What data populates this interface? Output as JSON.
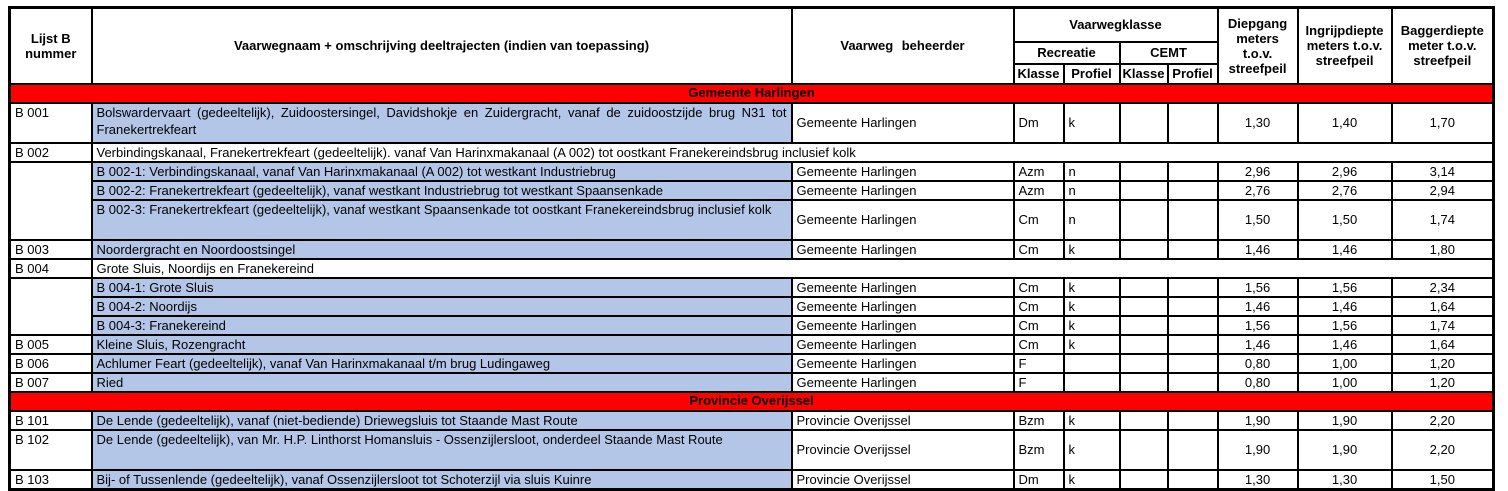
{
  "colors": {
    "highlight_blue": "#b4c6e7",
    "section_red": "#ff0000",
    "border_black": "#000000"
  },
  "table": {
    "header": {
      "lijst_b": "Lijst B nummer",
      "vaarwegnaam": "Vaarwegnaam + omschrijving deeltrajecten (indien van toepassing)",
      "beheerder": "Vaarweg beheerder",
      "vaarwegklasse": "Vaarwegklasse",
      "recreatie": "Recreatie",
      "cemt": "CEMT",
      "klasse": "Klasse",
      "profiel": "Profiel",
      "diepgang": "Diepgang meters t.o.v. streefpeil",
      "ingrijpdiepte": "Ingrijpdiepte meters t.o.v. streefpeil",
      "baggerdiepte": "Baggerdiepte meter t.o.v. streefpeil"
    },
    "rows": [
      {
        "type": "section",
        "label": "Gemeente Harlingen"
      },
      {
        "type": "main",
        "tall": true,
        "num": "B 001",
        "name": "Bolswardervaart (gedeeltelijk), Zuidoostersingel, Davidshokje en Zuidergracht, vanaf de zuidoostzijde brug N31 tot Franekertrekfeart",
        "beheerder": "Gemeente Harlingen",
        "rec_klasse": "Dm",
        "rec_profiel": "k",
        "cemt_klasse": "",
        "cemt_profiel": "",
        "diepgang": "1,30",
        "ingrijpdiepte": "1,40",
        "baggerdiepte": "1,70"
      },
      {
        "type": "span",
        "num": "B 002",
        "name": "Verbindingskanaal, Franekertrekfeart (gedeeltelijk). vanaf Van Harinxmakanaal (A 002) tot oostkant Franekereindsbrug inclusief kolk"
      },
      {
        "type": "sub",
        "num_rowspan": 3,
        "num": "",
        "name": "B 002-1: Verbindingskanaal, vanaf Van Harinxmakanaal (A 002) tot westkant Industriebrug",
        "beheerder": "Gemeente Harlingen",
        "rec_klasse": "Azm",
        "rec_profiel": "n",
        "cemt_klasse": "",
        "cemt_profiel": "",
        "diepgang": "2,96",
        "ingrijpdiepte": "2,96",
        "baggerdiepte": "3,14"
      },
      {
        "type": "sub",
        "name": "B 002-2: Franekertrekfeart (gedeeltelijk), vanaf westkant Industriebrug tot westkant Spaansenkade",
        "beheerder": "Gemeente Harlingen",
        "rec_klasse": "Azm",
        "rec_profiel": "n",
        "cemt_klasse": "",
        "cemt_profiel": "",
        "diepgang": "2,76",
        "ingrijpdiepte": "2,76",
        "baggerdiepte": "2,94"
      },
      {
        "type": "sub",
        "tall": true,
        "name": "B 002-3: Franekertrekfeart (gedeeltelijk), vanaf westkant Spaansenkade tot oostkant Franekereindsbrug inclusief kolk",
        "beheerder": "Gemeente Harlingen",
        "rec_klasse": "Cm",
        "rec_profiel": "n",
        "cemt_klasse": "",
        "cemt_profiel": "",
        "diepgang": "1,50",
        "ingrijpdiepte": "1,50",
        "baggerdiepte": "1,74"
      },
      {
        "type": "main",
        "num": "B 003",
        "name": "Noordergracht en Noordoostsingel",
        "beheerder": "Gemeente Harlingen",
        "rec_klasse": "Cm",
        "rec_profiel": "k",
        "cemt_klasse": "",
        "cemt_profiel": "",
        "diepgang": "1,46",
        "ingrijpdiepte": "1,46",
        "baggerdiepte": "1,80"
      },
      {
        "type": "span",
        "num": "B 004",
        "name": "Grote Sluis, Noordijs en Franekereind"
      },
      {
        "type": "sub",
        "num_rowspan": 3,
        "num": "",
        "name": "B 004-1: Grote Sluis",
        "beheerder": "Gemeente Harlingen",
        "rec_klasse": "Cm",
        "rec_profiel": "k",
        "cemt_klasse": "",
        "cemt_profiel": "",
        "diepgang": "1,56",
        "ingrijpdiepte": "1,56",
        "baggerdiepte": "2,34"
      },
      {
        "type": "sub",
        "name": "B 004-2: Noordijs",
        "beheerder": "Gemeente Harlingen",
        "rec_klasse": "Cm",
        "rec_profiel": "k",
        "cemt_klasse": "",
        "cemt_profiel": "",
        "diepgang": "1,46",
        "ingrijpdiepte": "1,46",
        "baggerdiepte": "1,64"
      },
      {
        "type": "sub",
        "name": "B 004-3: Franekereind",
        "beheerder": "Gemeente Harlingen",
        "rec_klasse": "Cm",
        "rec_profiel": "k",
        "cemt_klasse": "",
        "cemt_profiel": "",
        "diepgang": "1,56",
        "ingrijpdiepte": "1,56",
        "baggerdiepte": "1,74"
      },
      {
        "type": "main",
        "num": "B 005",
        "name": "Kleine Sluis, Rozengracht",
        "beheerder": "Gemeente Harlingen",
        "rec_klasse": "Cm",
        "rec_profiel": "k",
        "cemt_klasse": "",
        "cemt_profiel": "",
        "diepgang": "1,46",
        "ingrijpdiepte": "1,46",
        "baggerdiepte": "1,64"
      },
      {
        "type": "main",
        "num": "B 006",
        "name": "Achlumer Feart (gedeeltelijk), vanaf Van Harinxmakanaal t/m brug Ludingaweg",
        "beheerder": "Gemeente Harlingen",
        "rec_klasse": "F",
        "rec_profiel": "",
        "cemt_klasse": "",
        "cemt_profiel": "",
        "diepgang": "0,80",
        "ingrijpdiepte": "1,00",
        "baggerdiepte": "1,20"
      },
      {
        "type": "main",
        "num": "B 007",
        "name": "Ried",
        "beheerder": "Gemeente Harlingen",
        "rec_klasse": "F",
        "rec_profiel": "",
        "cemt_klasse": "",
        "cemt_profiel": "",
        "diepgang": "0,80",
        "ingrijpdiepte": "1,00",
        "baggerdiepte": "1,20"
      },
      {
        "type": "section",
        "label": "Provincie Overijssel"
      },
      {
        "type": "main",
        "num": "B 101",
        "name": "De Lende (gedeeltelijk), vanaf (niet-bediende) Driewegsluis tot Staande Mast Route",
        "beheerder": "Provincie Overijssel",
        "rec_klasse": "Bzm",
        "rec_profiel": "k",
        "cemt_klasse": "",
        "cemt_profiel": "",
        "diepgang": "1,90",
        "ingrijpdiepte": "1,90",
        "baggerdiepte": "2,20"
      },
      {
        "type": "main",
        "tall": true,
        "num": "B 102",
        "name": "De Lende (gedeeltelijk), van Mr. H.P. Linthorst Homansluis - Ossenzijlersloot, onderdeel Staande Mast Route",
        "beheerder": "Provincie Overijssel",
        "rec_klasse": "Bzm",
        "rec_profiel": "k",
        "cemt_klasse": "",
        "cemt_profiel": "",
        "diepgang": "1,90",
        "ingrijpdiepte": "1,90",
        "baggerdiepte": "2,20"
      },
      {
        "type": "main",
        "num": "B 103",
        "name": "Bij- of Tussenlende (gedeeltelijk), vanaf Ossenzijlersloot tot Schoterzijl via sluis Kuinre",
        "beheerder": "Provincie Overijssel",
        "rec_klasse": "Dm",
        "rec_profiel": "k",
        "cemt_klasse": "",
        "cemt_profiel": "",
        "diepgang": "1,30",
        "ingrijpdiepte": "1,30",
        "baggerdiepte": "1,50"
      }
    ]
  }
}
